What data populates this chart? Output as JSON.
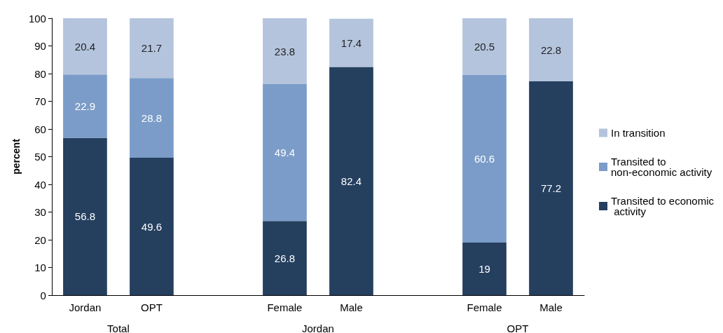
{
  "chart_data": {
    "type": "bar",
    "stacked": true,
    "ylabel": "percent",
    "categories": [
      "Jordan",
      "OPT",
      null,
      "Female",
      "Male",
      null,
      "Female",
      "Male"
    ],
    "series": [
      {
        "name": "Transited to economic activity",
        "color": "#253f5f",
        "values": [
          56.8,
          49.6,
          null,
          26.8,
          82.4,
          null,
          19,
          77.2
        ]
      },
      {
        "name": "Transited to non-economic activity",
        "color": "#7b9cc8",
        "values": [
          22.9,
          28.8,
          null,
          49.4,
          null,
          null,
          60.6,
          null
        ]
      },
      {
        "name": "In transition",
        "color": "#b4c4dd",
        "values": [
          20.4,
          21.7,
          null,
          23.8,
          17.4,
          null,
          20.5,
          22.8
        ]
      }
    ],
    "ylim": [
      0,
      100
    ],
    "yticks": [
      0,
      10,
      20,
      30,
      40,
      50,
      60,
      70,
      80,
      90,
      100
    ],
    "data_labels": true,
    "legend": "right",
    "grid": false,
    "annotations": [
      "Total",
      "Jordan",
      "OPT"
    ]
  }
}
